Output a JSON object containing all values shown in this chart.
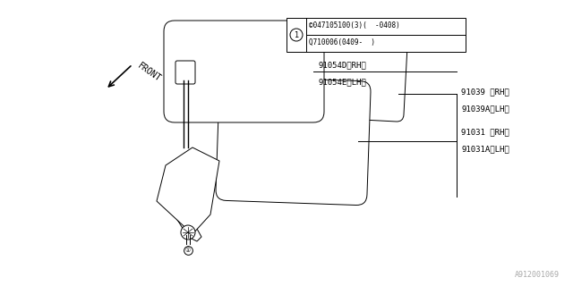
{
  "bg_color": "#ffffff",
  "line_color": "#000000",
  "text_color": "#000000",
  "watermark": "A912001069",
  "labels": {
    "91039": "91039 〈RH〉",
    "91039A": "91039A〈LH〉",
    "91031": "91031 〈RH〉",
    "91031A": "91031A〈LH〉",
    "91054D": "91054D〈RH〉",
    "91054E": "91054E〈LH〉"
  },
  "legend_line1": "©047105100(3)(  -0408)",
  "legend_line2": "Q710006(0409-  )",
  "front_label": "FRONT"
}
